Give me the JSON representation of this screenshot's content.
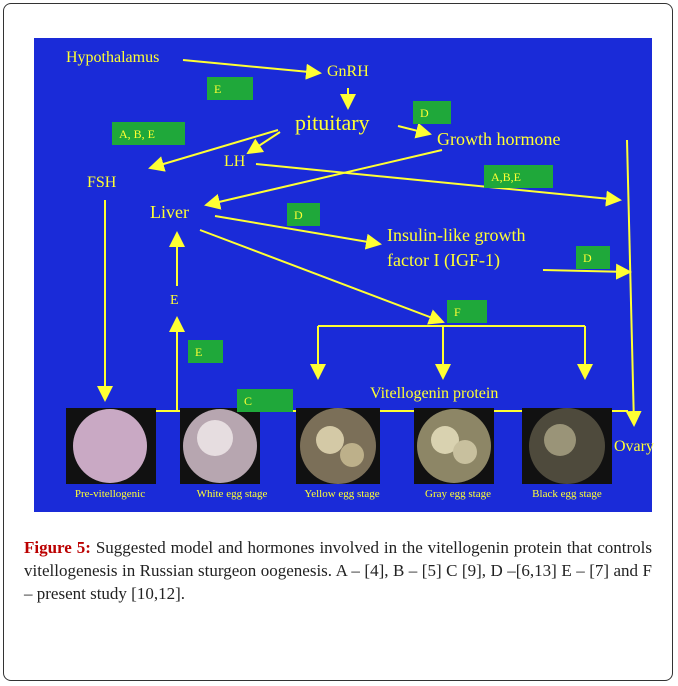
{
  "nodes": [
    {
      "label": "Hypothalamus"
    },
    {
      "label": "GnRH"
    },
    {
      "label": "pituitary"
    },
    {
      "label": "Growth hormone"
    },
    {
      "label": "LH"
    },
    {
      "label": "FSH"
    },
    {
      "label": "Liver"
    },
    {
      "label": "Insulin-like  growth"
    },
    {
      "label": "factor I (IGF-1)"
    },
    {
      "label": "E"
    },
    {
      "label": "Vitellogenin  protein"
    },
    {
      "label": "Ovary"
    }
  ],
  "reference_boxes": [
    {
      "label": "E"
    },
    {
      "label": "A, B, E"
    },
    {
      "label": "D"
    },
    {
      "label": "A,B,E"
    },
    {
      "label": "D"
    },
    {
      "label": "D"
    },
    {
      "label": "F"
    },
    {
      "label": "E"
    },
    {
      "label": "C"
    }
  ],
  "stages": [
    {
      "label": "Pre-vitellogenic"
    },
    {
      "label": "White egg stage"
    },
    {
      "label": "Yellow egg stage"
    },
    {
      "label": "Gray egg stage"
    },
    {
      "label": "Black egg stage"
    }
  ],
  "caption": {
    "label": "Figure 5:",
    "text": "Suggested model and hormones involved in the vitellogenin protein that controls vitellogenesis in Russian sturgeon oogenesis. A – [4], B – [5] C [9], D –[6,13] E – [7] and F – present study [10,12]."
  }
}
